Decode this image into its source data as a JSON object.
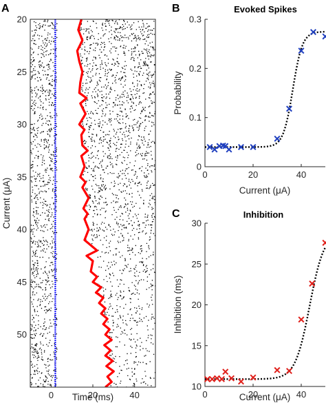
{
  "figure": {
    "panel_letters": [
      "A",
      "B",
      "C"
    ]
  },
  "chart_data": [
    {
      "panel": "A",
      "type": "scatter",
      "title": "",
      "xlabel": "Time (ms)",
      "ylabel": "Current (μA)",
      "xlim": [
        -10,
        50
      ],
      "ylim": [
        20,
        55
      ],
      "y_reversed": true,
      "x_ticks": [
        "0",
        "20",
        "40"
      ],
      "y_ticks": [
        "20",
        "25",
        "30",
        "35",
        "40",
        "45",
        "50"
      ],
      "grid": false,
      "legend": "none",
      "series": [
        {
          "role": "spike raster (background spikes)",
          "color": "#000000",
          "distribution": "dense random spikes across all currents and times; absent between the stimulus line and the red inhibition trace, sparser after the trace at high currents"
        },
        {
          "role": "evoked spikes",
          "color": "#1a1aff",
          "x_value_ms": 2,
          "y_range": [
            20,
            55
          ]
        },
        {
          "role": "end of inhibition trace",
          "color": "#ff0000",
          "points": [
            [
              14.5,
              20
            ],
            [
              13,
              21
            ],
            [
              15,
              22
            ],
            [
              12.5,
              23
            ],
            [
              13.5,
              24
            ],
            [
              15,
              25
            ],
            [
              14,
              26
            ],
            [
              13.5,
              27
            ],
            [
              17,
              27.5
            ],
            [
              14,
              28
            ],
            [
              16.5,
              29
            ],
            [
              13.5,
              30
            ],
            [
              16,
              30.5
            ],
            [
              14.5,
              31
            ],
            [
              15,
              32
            ],
            [
              17.5,
              32.5
            ],
            [
              14.5,
              33
            ],
            [
              16,
              34
            ],
            [
              14,
              35
            ],
            [
              16.5,
              35.5
            ],
            [
              15,
              36
            ],
            [
              18,
              37
            ],
            [
              15.5,
              38
            ],
            [
              17.5,
              38.5
            ],
            [
              16,
              39
            ],
            [
              18,
              40
            ],
            [
              16,
              41
            ],
            [
              19,
              41.5
            ],
            [
              22,
              42
            ],
            [
              17,
              42.5
            ],
            [
              20,
              43
            ],
            [
              19,
              44
            ],
            [
              22,
              44.5
            ],
            [
              20,
              45
            ],
            [
              24,
              45.5
            ],
            [
              21.5,
              46
            ],
            [
              25,
              46.5
            ],
            [
              23,
              47
            ],
            [
              26,
              47.5
            ],
            [
              24,
              48
            ],
            [
              27,
              48.5
            ],
            [
              25,
              49
            ],
            [
              28,
              49.5
            ],
            [
              26,
              50
            ],
            [
              29,
              50.5
            ],
            [
              25.5,
              51
            ],
            [
              28.5,
              51.5
            ],
            [
              26,
              52
            ],
            [
              29.5,
              52.5
            ],
            [
              26.5,
              53
            ],
            [
              30,
              53.5
            ],
            [
              27,
              54
            ],
            [
              29,
              54.5
            ],
            [
              26,
              55
            ]
          ]
        }
      ]
    },
    {
      "panel": "B",
      "type": "scatter",
      "title": "Evoked Spikes",
      "xlabel": "Current (μA)",
      "ylabel": "Probability",
      "xlim": [
        0,
        50
      ],
      "ylim": [
        0,
        0.3
      ],
      "x_ticks": [
        "0",
        "20",
        "40"
      ],
      "y_ticks": [
        "0",
        "0.1",
        "0.2",
        "0.3"
      ],
      "grid": false,
      "legend": "none",
      "series": [
        {
          "role": "data",
          "marker": "x",
          "color": "#1f3fbf",
          "x": [
            2,
            4,
            6,
            7.5,
            8.5,
            10,
            15,
            20,
            30,
            35,
            40,
            45,
            50
          ],
          "y": [
            0.04,
            0.035,
            0.042,
            0.043,
            0.042,
            0.035,
            0.04,
            0.04,
            0.057,
            0.118,
            0.236,
            0.274,
            0.265
          ]
        },
        {
          "role": "sigmoid fit",
          "style": "dotted",
          "color": "#000000",
          "baseline": 0.04,
          "amplitude": 0.235,
          "midpoint": 36.5,
          "slope": 2.0,
          "x_range": [
            0,
            50
          ]
        }
      ]
    },
    {
      "panel": "C",
      "type": "scatter",
      "title": "Inhibition",
      "xlabel": "Current (μA)",
      "ylabel": "Inhibition (ms)",
      "xlim": [
        0,
        50
      ],
      "ylim": [
        10,
        30
      ],
      "x_ticks": [
        "0",
        "20",
        "40"
      ],
      "y_ticks": [
        "10",
        "15",
        "20",
        "25",
        "30"
      ],
      "grid": false,
      "legend": "none",
      "series": [
        {
          "role": "data",
          "marker": "x",
          "color": "#e0201b",
          "x": [
            1,
            3,
            5,
            7,
            8.5,
            11,
            15,
            20,
            30,
            35,
            40,
            44.5,
            50
          ],
          "y": [
            10.9,
            10.9,
            11,
            10.9,
            11.8,
            11,
            10.6,
            11.1,
            12,
            11.9,
            18.2,
            22.6,
            27.6
          ]
        },
        {
          "role": "sigmoid fit",
          "style": "dotted",
          "color": "#000000",
          "baseline": 10.9,
          "amplitude": 18,
          "midpoint": 43.5,
          "slope": 3.0,
          "x_range": [
            0,
            50
          ]
        }
      ]
    }
  ]
}
